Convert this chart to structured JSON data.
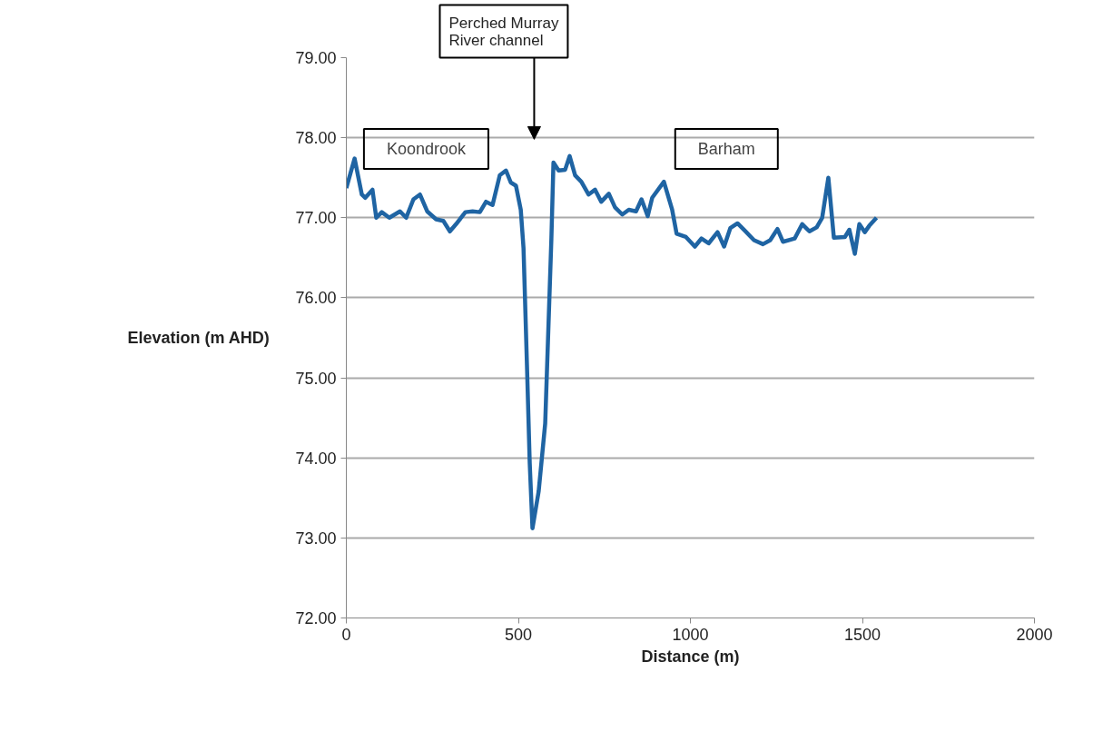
{
  "chart_data": {
    "type": "line",
    "xlabel": "Distance (m)",
    "ylabel": "Elevation (m AHD)",
    "xlim": [
      0,
      2000
    ],
    "xticks": [
      0,
      500,
      1000,
      1500,
      2000
    ],
    "ylim": [
      72,
      79
    ],
    "yticks": [
      {
        "value": 72,
        "label": "72.00"
      },
      {
        "value": 73,
        "label": "73.00"
      },
      {
        "value": 74,
        "label": "74.00"
      },
      {
        "value": 75,
        "label": "75.00"
      },
      {
        "value": 76,
        "label": "76.00"
      },
      {
        "value": 77,
        "label": "77.00"
      },
      {
        "value": 78,
        "label": "78.00"
      },
      {
        "value": 79,
        "label": "79.00"
      }
    ],
    "grid": "y",
    "marker": "none",
    "line_style": "solid",
    "annotations": [
      "Koondrook",
      "Perched Murray River channel",
      "Barham"
    ],
    "series": [
      {
        "color": "#1f64a3",
        "x": [
          0,
          24,
          45,
          55,
          76,
          87,
          103,
          125,
          156,
          174,
          195,
          214,
          235,
          261,
          282,
          301,
          319,
          346,
          367,
          388,
          406,
          425,
          446,
          464,
          478,
          493,
          507,
          515,
          525,
          533,
          541,
          559,
          578,
          596,
          602,
          617,
          636,
          649,
          665,
          683,
          704,
          723,
          741,
          763,
          781,
          802,
          821,
          842,
          858,
          876,
          889,
          923,
          947,
          960,
          987,
          1013,
          1032,
          1053,
          1079,
          1098,
          1116,
          1137,
          1158,
          1185,
          1211,
          1232,
          1253,
          1269,
          1303,
          1325,
          1346,
          1367,
          1383,
          1401,
          1417,
          1449,
          1462,
          1478,
          1491,
          1507,
          1520,
          1541
        ],
        "values": [
          77.37,
          77.74,
          77.29,
          77.25,
          77.35,
          77.0,
          77.07,
          77.0,
          77.08,
          77.0,
          77.23,
          77.29,
          77.08,
          76.98,
          76.96,
          76.83,
          76.92,
          77.07,
          77.08,
          77.07,
          77.2,
          77.16,
          77.53,
          77.59,
          77.44,
          77.4,
          77.1,
          76.62,
          75.16,
          73.94,
          73.12,
          73.58,
          74.43,
          76.74,
          77.69,
          77.59,
          77.6,
          77.77,
          77.53,
          77.45,
          77.29,
          77.35,
          77.2,
          77.3,
          77.13,
          77.04,
          77.1,
          77.08,
          77.23,
          77.02,
          77.25,
          77.45,
          77.1,
          76.8,
          76.76,
          76.64,
          76.74,
          76.68,
          76.82,
          76.64,
          76.87,
          76.93,
          76.84,
          76.72,
          76.67,
          76.72,
          76.86,
          76.7,
          76.74,
          76.92,
          76.83,
          76.88,
          77.0,
          77.5,
          76.75,
          76.76,
          76.85,
          76.55,
          76.92,
          76.82,
          76.9,
          77.0
        ]
      }
    ]
  }
}
